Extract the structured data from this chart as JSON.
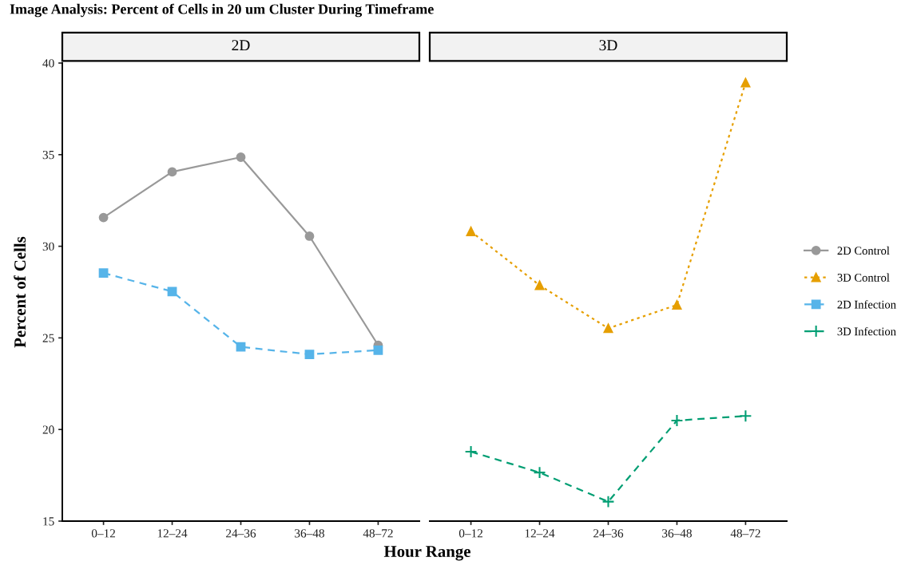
{
  "chart_data": [
    {
      "type": "line",
      "title": "Image Analysis: Percent of Cells in 20 um Cluster During Timeframe",
      "subtitle": "2D",
      "xlabel": "Hour Range",
      "ylabel": "Percent of Cells",
      "categories": [
        "0–12",
        "12–24",
        "24–36",
        "36–48",
        "48–72"
      ],
      "ylim": [
        15,
        40
      ],
      "yticks": [
        15,
        20,
        25,
        30,
        35,
        40
      ],
      "grid": false,
      "legend": "right",
      "series": [
        {
          "name": "2D Control",
          "color": "#999999",
          "marker": "circle",
          "line_style": "solid",
          "values": [
            31.57,
            34.06,
            34.86,
            30.55,
            24.6
          ]
        },
        {
          "name": "2D Infection",
          "color": "#56b4e9",
          "marker": "square",
          "line_style": "dashed",
          "values": [
            28.54,
            27.53,
            24.51,
            24.1,
            24.33
          ]
        }
      ]
    },
    {
      "type": "line",
      "subtitle": "3D",
      "categories": [
        "0–12",
        "12–24",
        "24–36",
        "36–48",
        "48–72"
      ],
      "ylim": [
        15,
        40
      ],
      "tick_labels": "x",
      "grid": false,
      "legend": "right",
      "series": [
        {
          "name": "3D Control",
          "color": "#e69f00",
          "marker": "triangle",
          "line_style": "dotted",
          "values": [
            30.81,
            27.87,
            25.52,
            26.8,
            38.93
          ]
        },
        {
          "name": "3D Infection",
          "color": "#009e73",
          "marker": "cross",
          "line_style": "dashed",
          "values": [
            18.79,
            17.65,
            16.06,
            20.49,
            20.74
          ]
        }
      ]
    }
  ]
}
